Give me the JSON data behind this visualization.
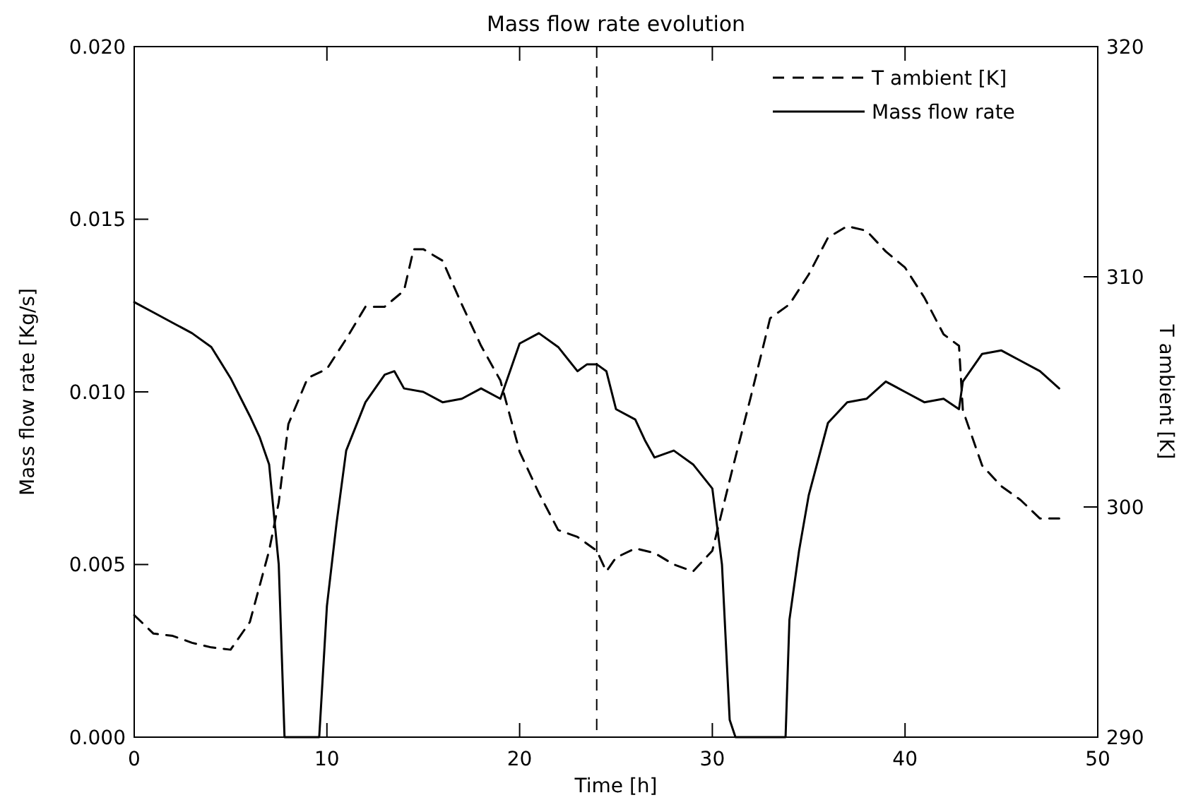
{
  "chart_data": {
    "type": "line",
    "title": "Mass flow rate evolution",
    "xlabel": "Time [h]",
    "ylabel": "Mass flow rate [Kg/s]",
    "y2label": "T ambient [K]",
    "xlim": [
      0,
      50
    ],
    "xticks": [
      0,
      10,
      20,
      30,
      40,
      50
    ],
    "ylim": [
      0,
      0.02
    ],
    "yticks": [
      {
        "value": 0,
        "label": "0.000"
      },
      {
        "value": 0.005,
        "label": "0.005"
      },
      {
        "value": 0.01,
        "label": "0.010"
      },
      {
        "value": 0.015,
        "label": "0.015"
      },
      {
        "value": 0.02,
        "label": "0.020"
      }
    ],
    "y2lim": [
      290,
      320
    ],
    "y2ticks": [
      290,
      300,
      310,
      320
    ],
    "legend": "top right",
    "grid": false,
    "ref_lines": [
      {
        "axis": "x",
        "value": 24,
        "color": "#000000",
        "line_style": "dashed"
      }
    ],
    "series": [
      {
        "name": "T ambient [K]",
        "color": "#000000",
        "axis": "y2",
        "line_style": "dashed",
        "x": [
          0,
          1,
          2,
          3,
          4,
          5,
          6,
          7,
          7.5,
          8,
          9,
          10,
          11,
          12,
          13,
          14,
          14.5,
          15,
          16,
          17,
          18,
          19,
          20,
          21,
          22,
          23,
          24,
          24.5,
          25,
          26,
          27,
          28,
          29,
          30,
          31,
          32,
          33,
          34,
          35,
          36,
          37,
          38,
          39,
          40,
          41,
          42,
          42.8,
          43,
          44,
          45,
          46,
          47,
          48
        ],
        "values": [
          295.3,
          294.5,
          294.4,
          294.1,
          293.9,
          293.8,
          295.0,
          298.1,
          300.2,
          303.6,
          305.6,
          306.0,
          307.3,
          308.7,
          308.7,
          309.4,
          311.2,
          311.2,
          310.7,
          308.8,
          307.0,
          305.5,
          302.4,
          300.6,
          299.0,
          298.7,
          298.1,
          297.2,
          297.8,
          298.2,
          298.0,
          297.5,
          297.2,
          298.1,
          301.5,
          304.8,
          308.2,
          308.8,
          310.1,
          311.7,
          312.2,
          312.0,
          311.1,
          310.4,
          309.1,
          307.5,
          307.0,
          304.2,
          301.8,
          300.9,
          300.3,
          299.5,
          299.5
        ]
      },
      {
        "name": "Mass flow rate",
        "color": "#000000",
        "line_style": "solid",
        "x": [
          0,
          1,
          2,
          3,
          4,
          5,
          6,
          6.5,
          7,
          7.5,
          7.8,
          8,
          9.6,
          10,
          10.5,
          11,
          12,
          13,
          13.5,
          14,
          15,
          16,
          17,
          18,
          19,
          19.5,
          20,
          21,
          22,
          23,
          23.5,
          24,
          24.5,
          25,
          26,
          26.5,
          27,
          28,
          29,
          30,
          30.5,
          30.9,
          31.2,
          33.8,
          34,
          34.5,
          35,
          36,
          37,
          38,
          39,
          40,
          41,
          42,
          42.8,
          43,
          44,
          45,
          46,
          47,
          48
        ],
        "values": [
          0.0126,
          0.0123,
          0.012,
          0.0117,
          0.0113,
          0.0104,
          0.0093,
          0.0087,
          0.0079,
          0.005,
          0,
          0,
          0,
          0.0038,
          0.0062,
          0.0083,
          0.0097,
          0.0105,
          0.0106,
          0.0101,
          0.01,
          0.0097,
          0.0098,
          0.0101,
          0.0098,
          0.0106,
          0.0114,
          0.0117,
          0.0113,
          0.0106,
          0.0108,
          0.0108,
          0.0106,
          0.0095,
          0.0092,
          0.0086,
          0.0081,
          0.0083,
          0.0079,
          0.0072,
          0.005,
          0.0005,
          0,
          0,
          0.0034,
          0.0054,
          0.007,
          0.0091,
          0.0097,
          0.0098,
          0.0103,
          0.01,
          0.0097,
          0.0098,
          0.0095,
          0.0103,
          0.0111,
          0.0112,
          0.0109,
          0.0106,
          0.0101
        ]
      }
    ]
  }
}
